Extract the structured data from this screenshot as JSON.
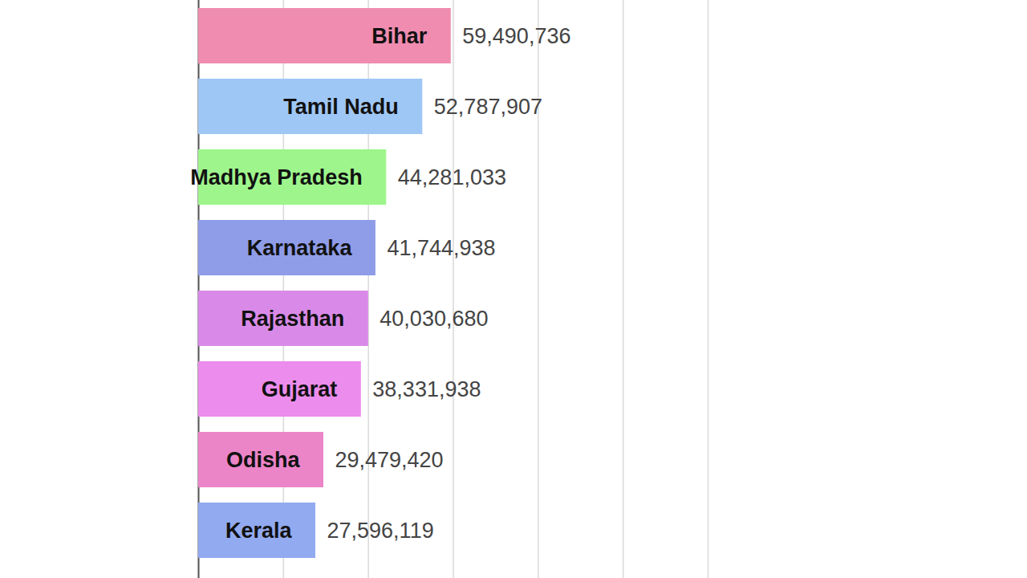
{
  "chart_data": {
    "type": "bar",
    "orientation": "horizontal",
    "categories": [
      "Bihar",
      "Tamil Nadu",
      "Madhya Pradesh",
      "Karnataka",
      "Rajasthan",
      "Gujarat",
      "Odisha",
      "Kerala"
    ],
    "values": [
      59490736,
      52787907,
      44281033,
      41744938,
      40030680,
      38331938,
      29479420,
      27596119
    ],
    "value_labels": [
      "59,490,736",
      "52,787,907",
      "44,281,033",
      "41,744,938",
      "40,030,680",
      "38,331,938",
      "29,479,420",
      "27,596,119"
    ],
    "colors": [
      "#f08cb0",
      "#9fc7f5",
      "#9ef58c",
      "#8f9ce8",
      "#d98ae8",
      "#ec8cec",
      "#ec84c8",
      "#92aaf0"
    ],
    "xlim": [
      0,
      120000000
    ],
    "xticks": [
      0,
      20000000,
      40000000,
      60000000,
      80000000,
      100000000,
      120000000
    ],
    "grid": true,
    "data_labels": true,
    "tick_labels": false
  }
}
